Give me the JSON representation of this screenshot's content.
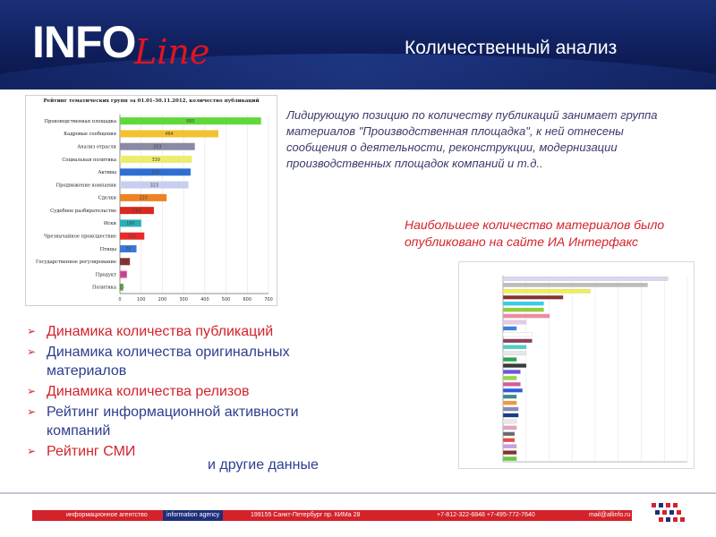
{
  "header": {
    "logo_main": "INFO",
    "logo_script": "Line",
    "title": "Количественный анализ"
  },
  "colors": {
    "header_bg": "#14276e",
    "accent_red": "#d4222b",
    "accent_blue": "#2d3e8e"
  },
  "content": {
    "paragraph1": "Лидирующую позицию по количеству публикаций занимает группа материалов \"Производственная площадка\", к ней отнесены сообщения о деятельности, реконструкции, модернизации производственных площадок компаний и т.д..",
    "paragraph2": "Наибольшее количество материалов было опубликовано на сайте  ИА Интерфакс",
    "bullets": [
      {
        "text": "Динамика количества публикаций",
        "color": "red"
      },
      {
        "text": "Динамика количества оригинальных материалов",
        "color": "blue"
      },
      {
        "text": "Динамика количества релизов",
        "color": "red"
      },
      {
        "text": "Рейтинг информационной активности компаний",
        "color": "blue"
      },
      {
        "text": "Рейтинг СМИ",
        "color": "red"
      }
    ],
    "other_data": "и другие данные"
  },
  "footer": {
    "agency_ru": "информационное агентство",
    "agency_en": "information agency",
    "address": "199155  Санкт-Петербург  пр. КИМа 28",
    "phones": "+7-812-322-6848  +7-495-772-7640",
    "email": "mail@allinfo.ru"
  },
  "chart_data": [
    {
      "type": "bar",
      "orientation": "horizontal",
      "title": "Рейтинг тематических групп за 01.01-30.11.2012, количество публикаций",
      "categories": [
        "Производственная площадка",
        "Кадровые сообщения",
        "Анализ отрасли",
        "Социальная политика",
        "Активы",
        "Продвижение компании",
        "Сделки",
        "Судебное разбирательство",
        "Иски",
        "Чрезвычайное происшествие",
        "Птицы",
        "Государственное регулирование",
        "Продукт",
        "Политика"
      ],
      "values": [
        665,
        464,
        353,
        339,
        333,
        323,
        220,
        160,
        100,
        115,
        78,
        47,
        33,
        15
      ],
      "value_labels": [
        "665",
        "464",
        "353",
        "339",
        "333",
        "323",
        "220",
        "160",
        "100",
        "115",
        "78",
        "47",
        "33",
        "15"
      ],
      "colors": [
        "#5fd83a",
        "#f2c230",
        "#8a8aa6",
        "#ecec6e",
        "#2f6fd2",
        "#c8cfee",
        "#ee8224",
        "#d82a20",
        "#2aaeb8",
        "#e82a2a",
        "#3a78d8",
        "#8a3030",
        "#e04c9a",
        "#6aa84f"
      ],
      "xlim": [
        0,
        700
      ],
      "xticks": [
        "0",
        "100",
        "200",
        "300",
        "400",
        "500",
        "600",
        "700"
      ]
    },
    {
      "type": "bar",
      "orientation": "horizontal",
      "values": [
        170,
        149,
        90,
        62,
        42,
        42,
        48,
        24,
        14,
        30,
        30,
        24,
        24,
        14,
        24,
        18,
        14,
        18,
        20,
        14,
        14,
        16,
        16,
        14,
        14,
        12,
        12,
        14,
        14,
        14
      ],
      "colors": [
        "#d8d8f0",
        "#bcbcbc",
        "#f0f04a",
        "#8a3030",
        "#2fd0e8",
        "#8fce3a",
        "#f08aa0",
        "#e8c8e8",
        "#3a80e0",
        "#ffffff",
        "#8a4060",
        "#4ad0c0",
        "#e8e8e8",
        "#2aa84a",
        "#3a3a3a",
        "#6a5ad8",
        "#9ad83a",
        "#d85aa0",
        "#2a5ae0",
        "#3a8a8a",
        "#f09a3a",
        "#8a8ab8",
        "#1a3a8a",
        "#e8e8e8",
        "#e8a0c0",
        "#6a6a6a",
        "#e84a4a",
        "#c8a0e0",
        "#8a3030",
        "#6ac83a"
      ],
      "xlim": [
        0,
        190
      ]
    }
  ]
}
